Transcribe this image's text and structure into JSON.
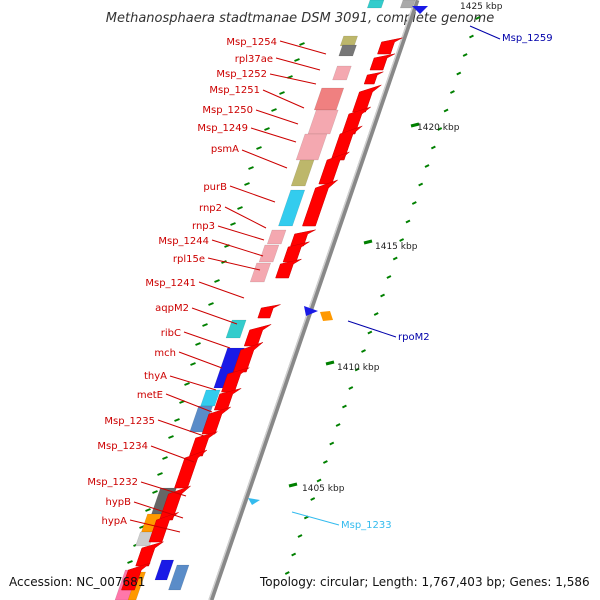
{
  "title": "Methanosphaera stadtmanae DSM 3091, complete genome",
  "footer": {
    "accession": "Accession: NC_007681",
    "topology": "Topology: circular; Length: 1,767,403 bp; Genes: 1,586"
  },
  "scale_labels": [
    "1425 kbp",
    "1420 kbp",
    "1415 kbp",
    "1410 kbp",
    "1405 kbp"
  ],
  "colors": {
    "forward_label": "#cc0000",
    "reverse_label": "#0000aa",
    "cyan_label": "#33bbee",
    "backbone": "#999999",
    "tick": "#008000",
    "arrow": "#ff0000"
  },
  "left_labels": [
    "Msp_1254",
    "rpl37ae",
    "Msp_1252",
    "Msp_1251",
    "Msp_1250",
    "Msp_1249",
    "psmA",
    "purB",
    "rnp2",
    "rnp3",
    "Msp_1244",
    "rpl15e",
    "Msp_1241",
    "aqpM2",
    "ribC",
    "mch",
    "thyA",
    "metE",
    "Msp_1235",
    "Msp_1234",
    "Msp_1232",
    "hypB",
    "hypA"
  ],
  "right_labels": [
    {
      "text": "Msp_1259",
      "color": "#0000aa"
    },
    {
      "text": "rpoM2",
      "color": "#0000aa"
    },
    {
      "text": "Msp_1233",
      "color": "#33bbee"
    }
  ]
}
